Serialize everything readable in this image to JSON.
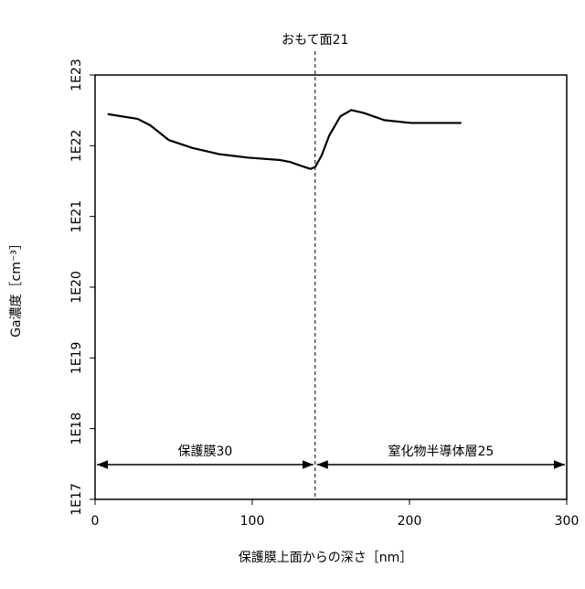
{
  "chart_data": {
    "type": "line",
    "x_label": "保護膜上面からの深さ［nm］",
    "y_label": "Ga濃度［cm⁻³］",
    "log_y": true,
    "xlim": [
      0,
      300
    ],
    "xticks": [
      0,
      100,
      200,
      300
    ],
    "ylim": [
      1e+17,
      1e+23
    ],
    "yticks": [
      {
        "value": 1e+17,
        "label": "1E17"
      },
      {
        "value": 1e+18,
        "label": "1E18"
      },
      {
        "value": 1e+19,
        "label": "1E19"
      },
      {
        "value": 1e+20,
        "label": "1E20"
      },
      {
        "value": 1e+21,
        "label": "1E21"
      },
      {
        "value": 1e+22,
        "label": "1E22"
      },
      {
        "value": 1e+23,
        "label": "1E23"
      }
    ],
    "x": [
      8,
      27,
      35,
      47,
      62,
      79,
      97,
      117,
      124,
      131,
      137,
      140,
      144,
      149,
      156,
      163,
      171,
      184,
      201,
      219,
      233
    ],
    "series": [
      {
        "color": "#000000",
        "values": [
          2.8e+22,
          2.4e+22,
          1.95e+22,
          1.2e+22,
          9.3e+21,
          7.6e+21,
          6.8e+21,
          6.3e+21,
          5.9e+21,
          5.2e+21,
          4.7e+21,
          5e+21,
          7.2e+21,
          1.4e+22,
          2.6e+22,
          3.2e+22,
          2.9e+22,
          2.3e+22,
          2.1e+22,
          2.1e+22,
          2.1e+22
        ]
      }
    ],
    "marker_line": {
      "label": "おもて面21",
      "x": 140
    },
    "regions": [
      {
        "label": "保護膜30",
        "start": 0,
        "end": 140
      },
      {
        "label": "窒化物半導体層25",
        "start": 140,
        "end": 300
      }
    ]
  }
}
